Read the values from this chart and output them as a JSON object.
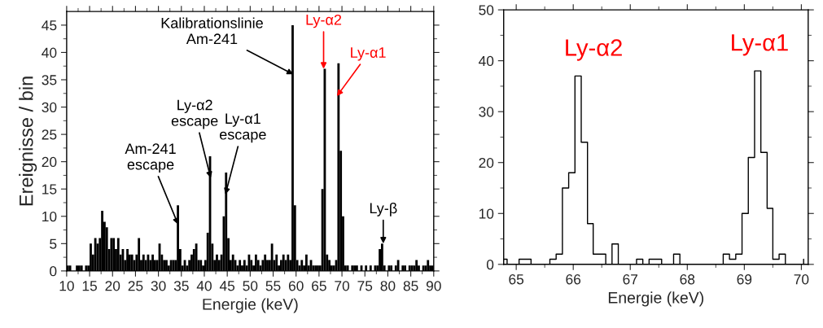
{
  "chart_data": [
    {
      "type": "histogram",
      "xlabel": "Energie (keV)",
      "ylabel": "Ereignisse / bin",
      "color": "#000000",
      "bins": [
        10,
        10.5,
        11,
        11.5,
        12,
        12.5,
        13,
        13.5,
        14,
        14.5,
        15,
        15.5,
        16,
        16.5,
        17,
        17.5,
        18,
        18.5,
        19,
        19.5,
        20,
        20.5,
        21,
        21.5,
        22,
        22.5,
        23,
        23.5,
        24,
        24.5,
        25,
        25.5,
        26,
        26.5,
        27,
        27.5,
        28,
        28.5,
        29,
        29.5,
        30,
        30.5,
        31,
        31.5,
        32,
        32.5,
        33,
        33.5,
        34,
        34.5,
        35,
        35.5,
        36,
        36.5,
        37,
        37.5,
        38,
        38.5,
        39,
        39.5,
        40,
        40.5,
        41,
        41.5,
        42,
        42.5,
        43,
        43.5,
        44,
        44.5,
        45,
        45.5,
        46,
        46.5,
        47,
        47.5,
        48,
        48.5,
        49,
        49.5,
        50,
        50.5,
        51,
        51.5,
        52,
        52.5,
        53,
        53.5,
        54,
        54.5,
        55,
        55.5,
        56,
        56.5,
        57,
        57.5,
        58,
        58.5,
        59,
        59.5,
        60,
        60.5,
        61,
        61.5,
        62,
        62.5,
        63,
        63.5,
        64,
        64.5,
        65,
        65.5,
        66,
        66.5,
        67,
        67.5,
        68,
        68.5,
        69,
        69.5,
        70,
        70.5,
        71,
        71.5,
        72,
        72.5,
        73,
        73.5,
        74,
        74.5,
        75,
        75.5,
        76,
        76.5,
        77,
        77.5,
        78,
        78.5,
        79,
        79.5,
        80,
        80.5,
        81,
        81.5,
        82,
        82.5,
        83,
        83.5,
        84,
        84.5,
        85,
        85.5,
        86,
        86.5,
        87,
        87.5,
        88,
        88.5,
        89,
        89.5,
        90
      ],
      "values": [
        1,
        1,
        0,
        0,
        1,
        1,
        1,
        0,
        1,
        1,
        5,
        3,
        6,
        5,
        6,
        11,
        9,
        8,
        4,
        6,
        6,
        4,
        6,
        3,
        4,
        2,
        4,
        3,
        3,
        2,
        3,
        6,
        2,
        3,
        2,
        3,
        2,
        3,
        2,
        2,
        5,
        3,
        2,
        2,
        1,
        2,
        2,
        2,
        12,
        4,
        1,
        2,
        1,
        2,
        3,
        4,
        5,
        2,
        2,
        1,
        2,
        7,
        21,
        5,
        2,
        3,
        2,
        3,
        10,
        18,
        6,
        2,
        3,
        2,
        1,
        2,
        1,
        2,
        1,
        3,
        2,
        1,
        3,
        2,
        1,
        2,
        3,
        2,
        2,
        5,
        2,
        3,
        1,
        2,
        3,
        2,
        3,
        2,
        45,
        12,
        2,
        1,
        2,
        1,
        3,
        1,
        2,
        1,
        1,
        1,
        1,
        15,
        37,
        3,
        2,
        1,
        1,
        2,
        38,
        22,
        10,
        1,
        1,
        0,
        1,
        1,
        1,
        0,
        1,
        0,
        1,
        0,
        1,
        0,
        1,
        1,
        4,
        5,
        1,
        0,
        1,
        1,
        0,
        1,
        2,
        0,
        1,
        1,
        0,
        1,
        1,
        1,
        2,
        1,
        0,
        1,
        1,
        2,
        1,
        1
      ],
      "xlim": [
        10,
        90
      ],
      "xticks": [
        10,
        15,
        20,
        25,
        30,
        35,
        40,
        45,
        50,
        55,
        60,
        65,
        70,
        75,
        80,
        85,
        90
      ],
      "ylim": [
        0,
        47.5
      ],
      "yticks": [
        0,
        5,
        10,
        15,
        20,
        25,
        30,
        35,
        40,
        45
      ],
      "annotations": [
        {
          "text": "Kalibrationslinie\nAm-241",
          "x": 59.4,
          "y": 36
        },
        {
          "text": "Ly-α2",
          "x": 66.0,
          "y": 37
        },
        {
          "text": "Ly-α1",
          "x": 68.9,
          "y": 32
        },
        {
          "text": "Ly-α2\nescape",
          "x": 41.4,
          "y": 17
        },
        {
          "text": "Ly-α1\nescape",
          "x": 44.6,
          "y": 14
        },
        {
          "text": "Am-241\nescape",
          "x": 34.3,
          "y": 8.5
        },
        {
          "text": "Ly-β",
          "x": 79.0,
          "y": 5
        }
      ]
    },
    {
      "type": "step",
      "xlabel": "Energie (keV)",
      "color": "#000000",
      "x": [
        64.78,
        64.84,
        65.05,
        65.26,
        65.59,
        65.7,
        65.81,
        65.92,
        66.03,
        66.14,
        66.25,
        66.35,
        66.57,
        66.68,
        66.79,
        67.11,
        67.22,
        67.33,
        67.55,
        67.76,
        67.87,
        68.63,
        68.74,
        68.85,
        68.96,
        69.07,
        69.18,
        69.29,
        69.4,
        69.5,
        69.61,
        69.72,
        70.04
      ],
      "values": [
        1,
        0,
        1,
        0,
        1,
        2,
        15,
        18,
        37,
        24,
        8,
        2,
        0,
        4,
        0,
        1,
        0,
        1,
        0,
        2,
        0,
        2,
        1,
        2,
        10,
        21,
        38,
        22,
        11,
        1,
        2,
        0,
        1
      ],
      "xlim": [
        64.78,
        70.12
      ],
      "xticks": [
        65,
        66,
        67,
        68,
        69,
        70
      ],
      "ylim": [
        0,
        50
      ],
      "yticks": [
        0,
        10,
        20,
        30,
        40,
        50
      ],
      "annotations": [
        "Ly-α2",
        "Ly-α1"
      ]
    }
  ]
}
